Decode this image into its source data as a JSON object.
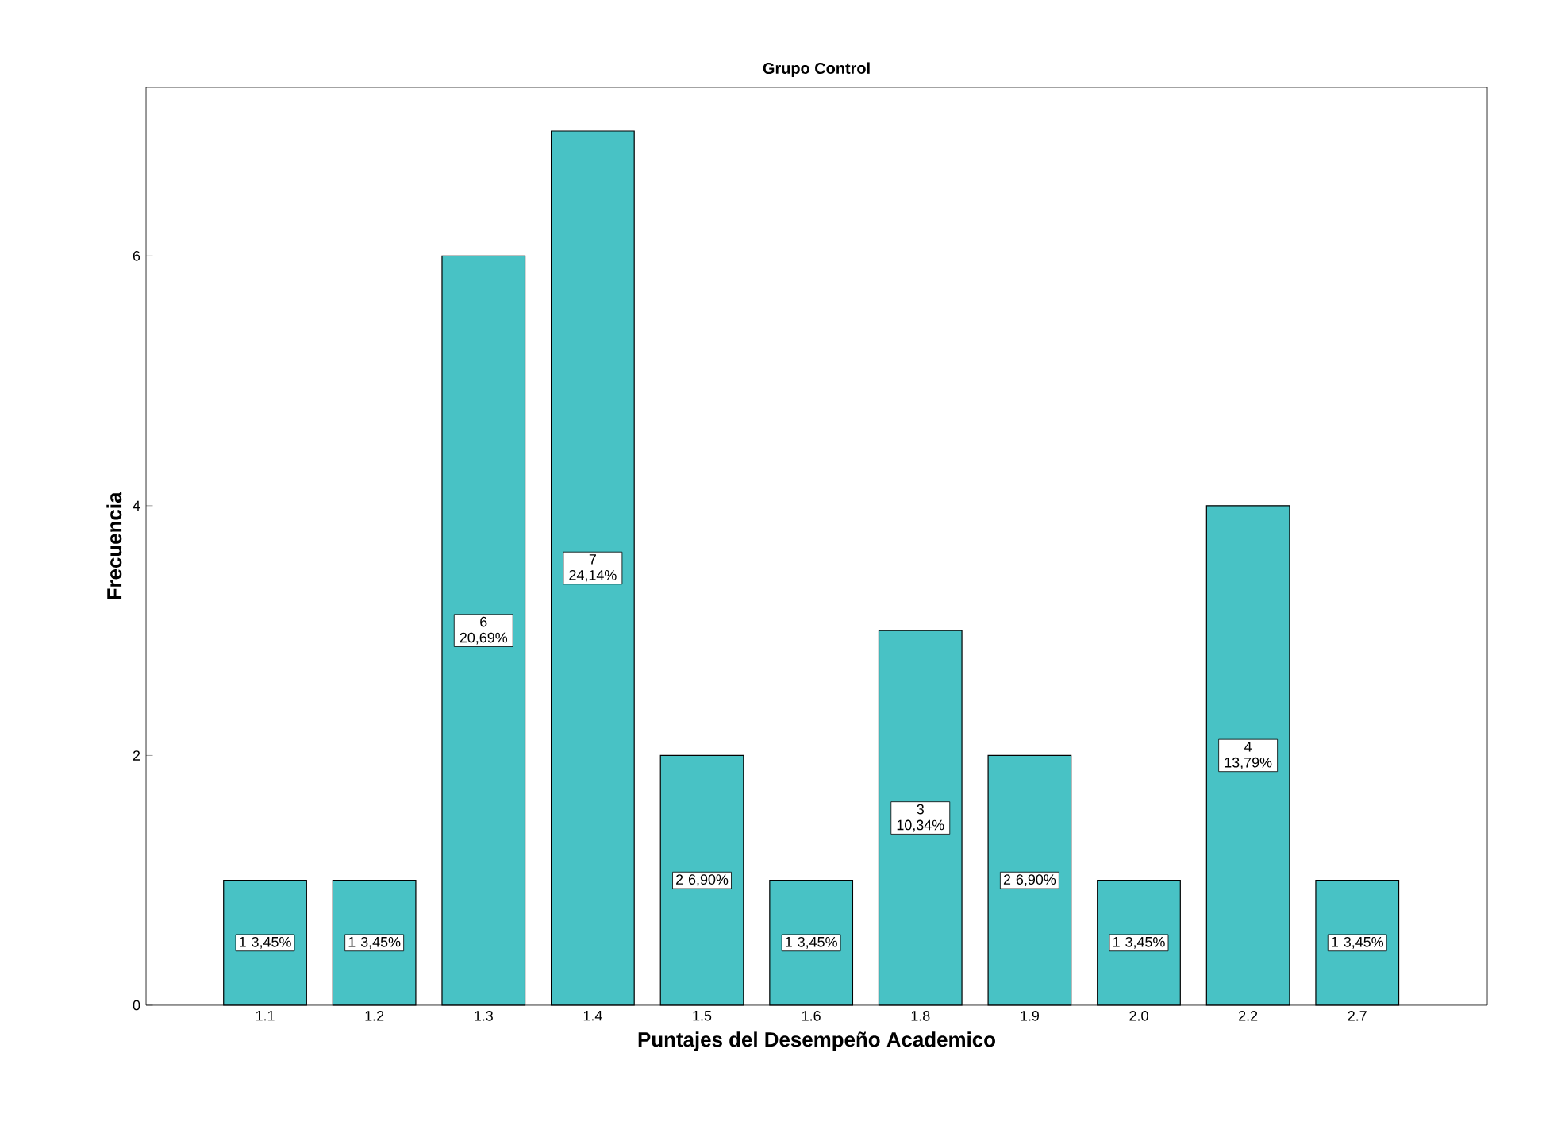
{
  "chart_data": {
    "type": "bar",
    "title": "Grupo Control",
    "xlabel": "Puntajes del Desempeño Academico",
    "ylabel": "Frecuencia",
    "categories": [
      "1.1",
      "1.2",
      "1.3",
      "1.4",
      "1.5",
      "1.6",
      "1.8",
      "1.9",
      "2.0",
      "2.2",
      "2.7"
    ],
    "values": [
      1,
      1,
      6,
      7,
      2,
      1,
      3,
      2,
      1,
      4,
      1
    ],
    "value_labels": [
      "1 3,45%",
      "1 3,45%",
      "6 20,69%",
      "7 24,14%",
      "2 6,90%",
      "1 3,45%",
      "3 10,34%",
      "2 6,90%",
      "1 3,45%",
      "4 13,79%",
      "1 3,45%"
    ],
    "color": "#48c2c5",
    "ylim": [
      0,
      7.35
    ],
    "yticks": [
      0,
      2,
      4,
      6
    ],
    "grid": false
  }
}
